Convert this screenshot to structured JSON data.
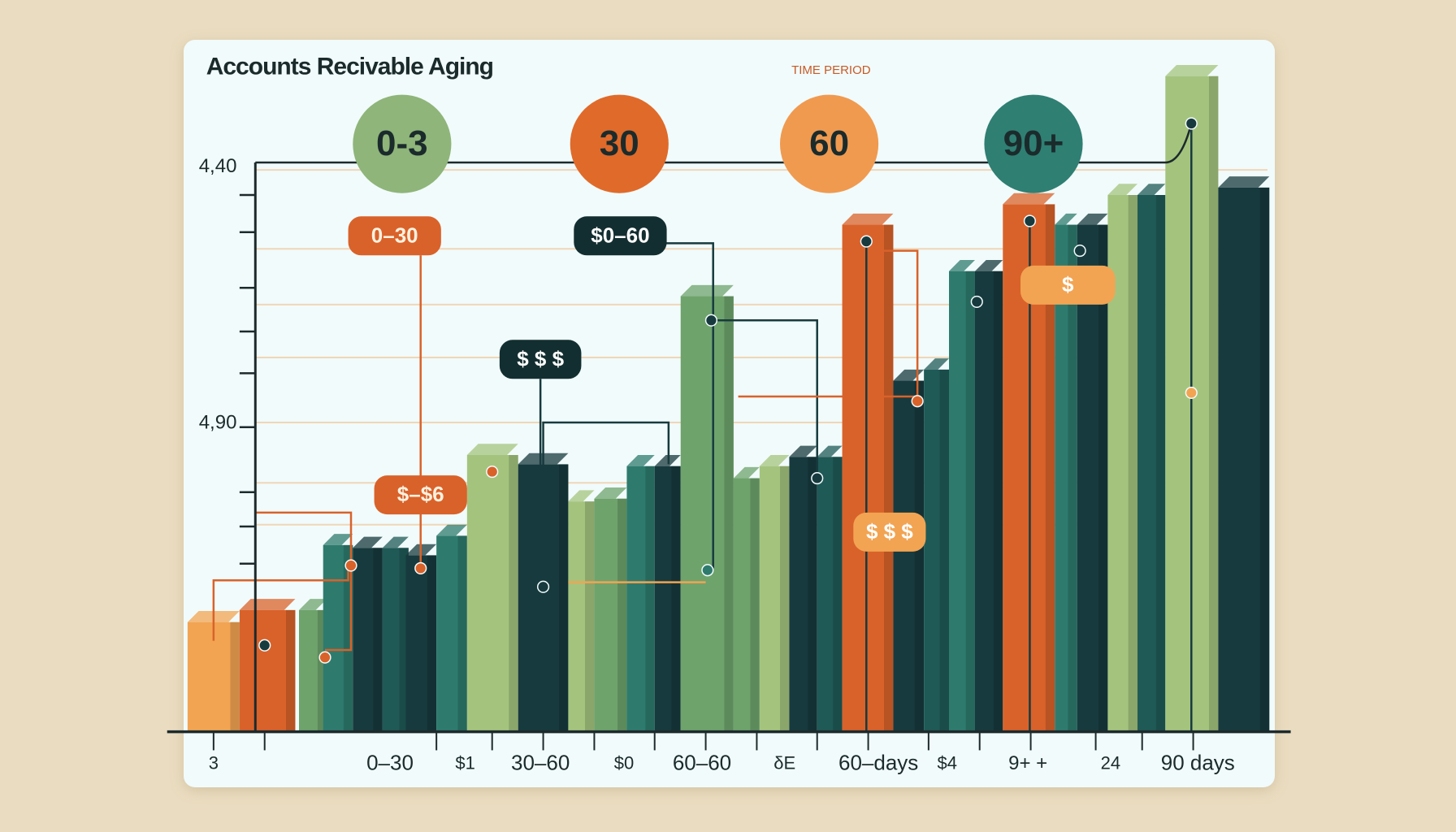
{
  "header": {
    "title": "Accounts Recivable Aging",
    "subtitle": "TIME PERIOD"
  },
  "badges": [
    "0-3",
    "30",
    "60",
    "90+"
  ],
  "y_axis_labels": [
    "4,40",
    "4,90"
  ],
  "tags": [
    "0–30",
    "$0–60",
    "$ $ $",
    "$–$6",
    "$ $ $",
    "$"
  ],
  "x_axis_labels": [
    "3",
    "0–30",
    "$1",
    "30–60",
    "$0",
    "60–60",
    "δE",
    "60–days",
    "$4",
    "9+  +",
    "24",
    "90 days"
  ]
}
